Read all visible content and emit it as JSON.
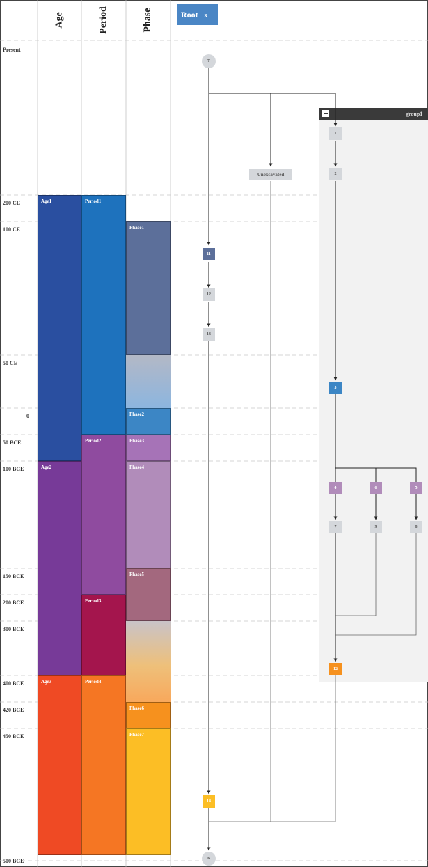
{
  "columns": {
    "age": "Age",
    "period": "Period",
    "phase": "Phase"
  },
  "root_tab": {
    "label": "Root",
    "close": "x"
  },
  "time_labels": [
    "Present",
    "200 CE",
    "100 CE",
    "50 CE",
    "0",
    "50 BCE",
    "100 BCE",
    "150 BCE",
    "200 BCE",
    "300 BCE",
    "400 BCE",
    "420 BCE",
    "450 BCE",
    "500 BCE"
  ],
  "ages": [
    "Age1",
    "Age2",
    "Age3"
  ],
  "periods": [
    "Period1",
    "Period2",
    "Period3",
    "Period4"
  ],
  "phases": [
    "Phase1",
    "Phase2",
    "Phase3",
    "Phase4",
    "Phase5",
    "Phase6",
    "Phase7"
  ],
  "group": {
    "label": "group1"
  },
  "nodes": {
    "top": "T",
    "bottom": "B",
    "unexcavated": "Unexcavated",
    "n1": "1",
    "n2": "2",
    "n3": "3",
    "n4": "4",
    "n5": "5",
    "n6": "6",
    "n7": "7",
    "n8": "8",
    "n9": "9",
    "n11": "11",
    "n12a": "12",
    "n13": "13",
    "n12b": "12",
    "n14": "14"
  },
  "colors": {
    "age1": "#2a4fa0",
    "age2": "#773a98",
    "age3": "#ef4a24",
    "period1": "#1e72bd",
    "period2": "#8f4b9f",
    "period3": "#a4154d",
    "period4": "#f57623",
    "phase1": "#5c6f9a",
    "phase2": "#3c86c5",
    "phase3": "#a673b7",
    "phase4": "#b18cba",
    "phase5": "#a3687e",
    "phase6": "#f6911e",
    "phase7": "#fcbe25",
    "node11": "#5c6f9a",
    "node3": "#3c86c5",
    "node_purple": "#b18cba",
    "node12b": "#f6911e",
    "node14": "#fcbe25"
  }
}
